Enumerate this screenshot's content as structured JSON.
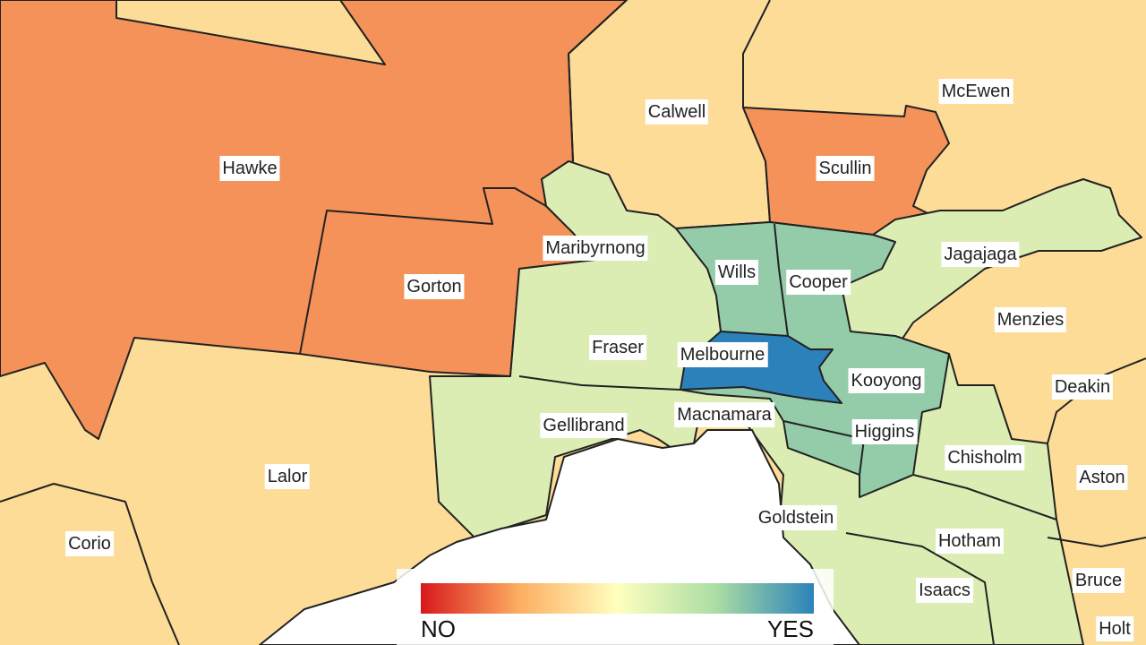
{
  "colors": {
    "no": "#d7191c",
    "mid_no": "#fdae61",
    "neutral": "#ffffbf",
    "mid_yes": "#abdda4",
    "yes": "#2b83ba",
    "fill_orange": "#f4925a",
    "fill_tan": "#fddc98",
    "fill_light_green": "#dcedb4",
    "fill_mid_green": "#94cba8",
    "fill_blue": "#2c81ba"
  },
  "electorates": [
    {
      "name": "Hawke",
      "level": "orange"
    },
    {
      "name": "Calwell",
      "level": "tan"
    },
    {
      "name": "McEwen",
      "level": "tan"
    },
    {
      "name": "Scullin",
      "level": "orange"
    },
    {
      "name": "Gorton",
      "level": "orange"
    },
    {
      "name": "Maribyrnong",
      "level": "light-green"
    },
    {
      "name": "Wills",
      "level": "mid-green"
    },
    {
      "name": "Cooper",
      "level": "mid-green"
    },
    {
      "name": "Jagajaga",
      "level": "light-green"
    },
    {
      "name": "Menzies",
      "level": "tan"
    },
    {
      "name": "Fraser",
      "level": "light-green"
    },
    {
      "name": "Melbourne",
      "level": "blue"
    },
    {
      "name": "Kooyong",
      "level": "mid-green"
    },
    {
      "name": "Deakin",
      "level": "tan"
    },
    {
      "name": "Gellibrand",
      "level": "light-green"
    },
    {
      "name": "Macnamara",
      "level": "mid-green"
    },
    {
      "name": "Higgins",
      "level": "mid-green"
    },
    {
      "name": "Lalor",
      "level": "tan"
    },
    {
      "name": "Chisholm",
      "level": "light-green"
    },
    {
      "name": "Aston",
      "level": "tan"
    },
    {
      "name": "Corio",
      "level": "tan"
    },
    {
      "name": "Goldstein",
      "level": "light-green"
    },
    {
      "name": "Hotham",
      "level": "light-green"
    },
    {
      "name": "Isaacs",
      "level": "light-green"
    },
    {
      "name": "Bruce",
      "level": "tan"
    },
    {
      "name": "Holt",
      "level": "tan"
    }
  ],
  "legend": {
    "no_label": "NO",
    "yes_label": "YES"
  }
}
